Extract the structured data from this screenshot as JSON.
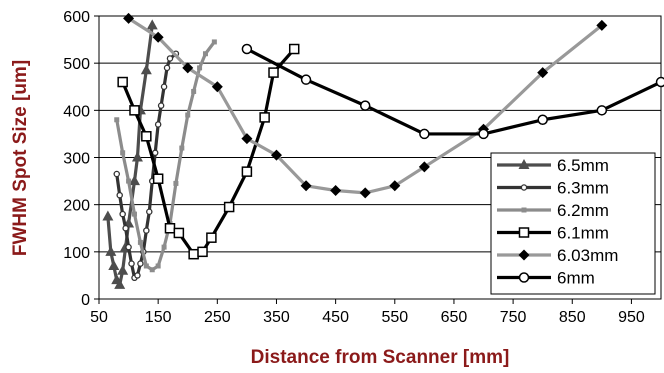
{
  "chart_data": {
    "type": "line",
    "title": "",
    "xlabel": "Distance from Scanner [mm]",
    "ylabel": "FWHM Spot Size [um]",
    "xlim": [
      50,
      1000
    ],
    "ylim": [
      0,
      600
    ],
    "x_ticks": [
      "50",
      "150",
      "250",
      "350",
      "450",
      "550",
      "650",
      "750",
      "850",
      "950"
    ],
    "y_ticks": [
      "0",
      "100",
      "200",
      "300",
      "400",
      "500",
      "600"
    ],
    "grid": "horizontal",
    "legend_position": "right",
    "series": [
      {
        "name": "6.5mm",
        "color": "#4d4d4d",
        "marker": "triangle",
        "points": [
          [
            65,
            175
          ],
          [
            70,
            100
          ],
          [
            75,
            70
          ],
          [
            80,
            40
          ],
          [
            85,
            30
          ],
          [
            90,
            60
          ],
          [
            95,
            110
          ],
          [
            100,
            160
          ],
          [
            110,
            250
          ],
          [
            115,
            300
          ],
          [
            120,
            400
          ],
          [
            130,
            485
          ],
          [
            140,
            580
          ]
        ]
      },
      {
        "name": "6.3mm",
        "color": "#333333",
        "marker": "small-circle",
        "points": [
          [
            80,
            265
          ],
          [
            85,
            220
          ],
          [
            90,
            180
          ],
          [
            95,
            150
          ],
          [
            100,
            110
          ],
          [
            105,
            75
          ],
          [
            110,
            45
          ],
          [
            115,
            50
          ],
          [
            120,
            75
          ],
          [
            125,
            100
          ],
          [
            130,
            145
          ],
          [
            135,
            185
          ],
          [
            140,
            250
          ],
          [
            145,
            310
          ],
          [
            150,
            370
          ],
          [
            155,
            410
          ],
          [
            160,
            450
          ],
          [
            165,
            490
          ],
          [
            170,
            510
          ],
          [
            180,
            520
          ]
        ]
      },
      {
        "name": "6.2mm",
        "color": "#8c8c8c",
        "marker": "small-square",
        "points": [
          [
            80,
            380
          ],
          [
            90,
            310
          ],
          [
            100,
            250
          ],
          [
            110,
            180
          ],
          [
            120,
            120
          ],
          [
            130,
            70
          ],
          [
            140,
            62
          ],
          [
            150,
            70
          ],
          [
            160,
            110
          ],
          [
            170,
            160
          ],
          [
            180,
            245
          ],
          [
            190,
            320
          ],
          [
            200,
            390
          ],
          [
            210,
            440
          ],
          [
            220,
            490
          ],
          [
            230,
            520
          ],
          [
            245,
            545
          ]
        ]
      },
      {
        "name": "6.1mm",
        "color": "#000000",
        "marker": "square",
        "points": [
          [
            90,
            460
          ],
          [
            110,
            400
          ],
          [
            130,
            345
          ],
          [
            150,
            255
          ],
          [
            170,
            150
          ],
          [
            185,
            140
          ],
          [
            210,
            95
          ],
          [
            225,
            100
          ],
          [
            240,
            130
          ],
          [
            270,
            195
          ],
          [
            300,
            270
          ],
          [
            330,
            385
          ],
          [
            345,
            480
          ],
          [
            380,
            530
          ]
        ]
      },
      {
        "name": "6.03mm",
        "color": "#999999",
        "marker": "diamond",
        "points": [
          [
            100,
            595
          ],
          [
            150,
            555
          ],
          [
            200,
            490
          ],
          [
            250,
            450
          ],
          [
            300,
            340
          ],
          [
            350,
            305
          ],
          [
            400,
            240
          ],
          [
            450,
            230
          ],
          [
            500,
            225
          ],
          [
            550,
            240
          ],
          [
            600,
            280
          ],
          [
            700,
            360
          ],
          [
            800,
            480
          ],
          [
            900,
            580
          ]
        ]
      },
      {
        "name": "6mm",
        "color": "#000000",
        "marker": "circle",
        "points": [
          [
            300,
            530
          ],
          [
            400,
            465
          ],
          [
            500,
            410
          ],
          [
            600,
            350
          ],
          [
            700,
            350
          ],
          [
            800,
            380
          ],
          [
            900,
            400
          ],
          [
            1000,
            460
          ]
        ]
      }
    ]
  }
}
